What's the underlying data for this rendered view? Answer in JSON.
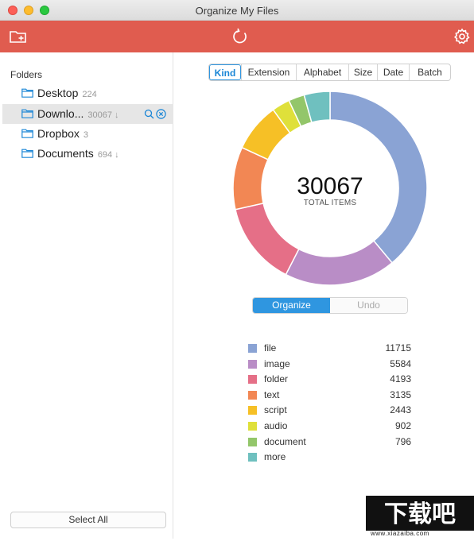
{
  "window": {
    "title": "Organize My Files"
  },
  "toolbar": {
    "new_folder_icon": "folder-plus-icon",
    "refresh_icon": "refresh-icon",
    "settings_icon": "gear-icon"
  },
  "sidebar": {
    "title": "Folders",
    "folders": [
      {
        "name": "Desktop",
        "count": "224",
        "arrow": ""
      },
      {
        "name": "Downlo...",
        "count": "30067",
        "arrow": "↓"
      },
      {
        "name": "Dropbox",
        "count": "3",
        "arrow": ""
      },
      {
        "name": "Documents",
        "count": "694",
        "arrow": "↓"
      }
    ],
    "select_all_label": "Select All"
  },
  "tabs": [
    {
      "label": "Kind",
      "active": true
    },
    {
      "label": "Extension",
      "active": false
    },
    {
      "label": "Alphabet",
      "active": false
    },
    {
      "label": "Size",
      "active": false
    },
    {
      "label": "Date",
      "active": false
    },
    {
      "label": "Batch",
      "active": false
    }
  ],
  "summary": {
    "total": "30067",
    "total_label": "TOTAL ITEMS"
  },
  "actions": {
    "organize_label": "Organize",
    "undo_label": "Undo"
  },
  "chart_data": {
    "type": "pie",
    "categories": [
      "file",
      "image",
      "folder",
      "text",
      "script",
      "audio",
      "document",
      "more"
    ],
    "values": [
      11715,
      5584,
      4193,
      3135,
      2443,
      902,
      796,
      1299
    ],
    "displayed_values": [
      "11715",
      "5584",
      "4193",
      "3135",
      "2443",
      "902",
      "796",
      ""
    ],
    "colors": [
      "#8aa3d4",
      "#b98dc6",
      "#e56f87",
      "#f28754",
      "#f6c026",
      "#dfe03a",
      "#93c66a",
      "#6fc0bf"
    ]
  },
  "watermark": {
    "text": "下载吧",
    "url": "www.xiazaiba.com"
  }
}
